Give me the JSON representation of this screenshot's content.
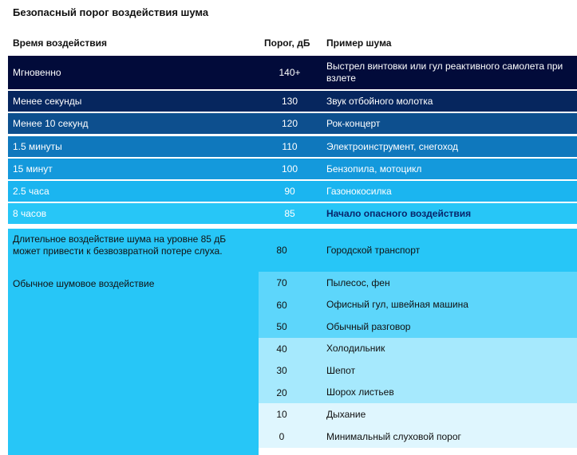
{
  "title": "Безопасный порог воздействия шума",
  "headers": {
    "time": "Время воздействия",
    "threshold": "Порог, дБ",
    "example": "Пример шума"
  },
  "dark_rows": [
    {
      "time": "Мгновенно",
      "db": "140+",
      "example": "Выстрел винтовки или гул реактивного самолета при взлете",
      "bg": "#020b3a",
      "fg": "#ffffff"
    },
    {
      "time": "Менее секунды",
      "db": "130",
      "example": "Звук отбойного молотка",
      "bg": "#06265e",
      "fg": "#ffffff"
    },
    {
      "time": "Менее 10 секунд",
      "db": "120",
      "example": "Рок-концерт",
      "bg": "#0d4f8e",
      "fg": "#ffffff"
    },
    {
      "time": "1.5 минуты",
      "db": "110",
      "example": "Электроинструмент, снегоход",
      "bg": "#0f78bd",
      "fg": "#ffffff"
    },
    {
      "time": "15 минут",
      "db": "100",
      "example": "Бензопила, мотоцикл",
      "bg": "#1499dc",
      "fg": "#ffffff"
    },
    {
      "time": "2.5 часа",
      "db": "90",
      "example": "Газонокосилка",
      "bg": "#1bb5f0",
      "fg": "#ffffff"
    },
    {
      "time": "8 часов",
      "db": "85",
      "example": "Начало опасного воздействия",
      "bg": "#27c6f7",
      "fg": "#ffffff"
    }
  ],
  "lower_left": {
    "note": "Длительное воздействие шума на уровне 85 дБ может привести к безвозвратной потере слуха.",
    "normal": "Обычное шумовое воздействие"
  },
  "right_rows": [
    {
      "db": "80",
      "example": "Городской транспорт",
      "bg": "#27c6f7"
    },
    {
      "db": "70",
      "example": "Пылесос, фен",
      "bg": "#5dd6fb"
    },
    {
      "db": "60",
      "example": "Офисный гул, швейная машина",
      "bg": "#5dd6fb"
    },
    {
      "db": "50",
      "example": "Обычный разговор",
      "bg": "#5dd6fb"
    },
    {
      "db": "40",
      "example": "Холодильник",
      "bg": "#a6e9fd"
    },
    {
      "db": "30",
      "example": "Шепот",
      "bg": "#a6e9fd"
    },
    {
      "db": "20",
      "example": "Шорох листьев",
      "bg": "#a6e9fd"
    },
    {
      "db": "10",
      "example": "Дыхание",
      "bg": "#dff6fe"
    },
    {
      "db": "0",
      "example": "Минимальный слуховой порог",
      "bg": "#dff6fe"
    }
  ],
  "colors": {
    "highlight_text": "#08256b",
    "dark_text": "#111111"
  }
}
